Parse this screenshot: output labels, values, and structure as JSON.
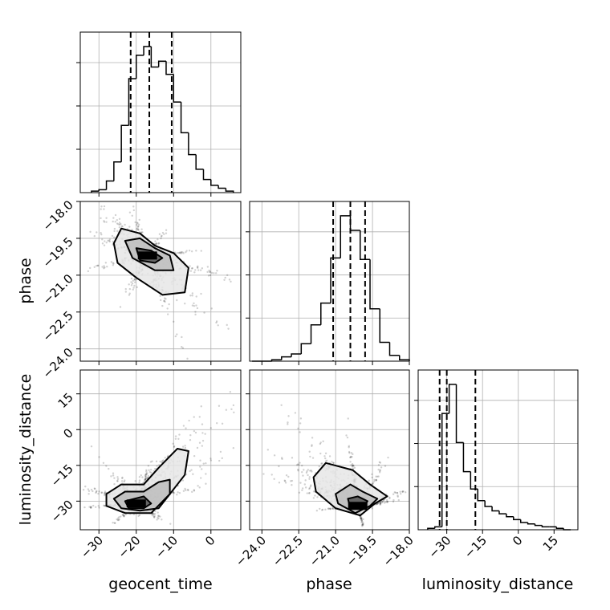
{
  "chart_data": {
    "type": "corner",
    "parameters": [
      "geocent_time",
      "phase",
      "luminosity_distance"
    ],
    "axes": {
      "geocent_time": {
        "range": [
          -35,
          8
        ],
        "ticks": [
          -30,
          -20,
          -10,
          0
        ],
        "tick_labels": [
          "−30",
          "−20",
          "−10",
          "0"
        ]
      },
      "phase": {
        "range": [
          -24.5,
          -18
        ],
        "ticks": [
          -24.0,
          -22.5,
          -21.0,
          -19.5,
          -18.0
        ],
        "tick_labels": [
          "−24.0",
          "−22.5",
          "−21.0",
          "−19.5",
          "−18.0"
        ]
      },
      "luminosity_distance": {
        "range": [
          -42,
          25
        ],
        "ticks": [
          -30,
          -15,
          0,
          15
        ],
        "tick_labels": [
          "−30",
          "−15",
          "0",
          "15"
        ]
      }
    },
    "grid": true,
    "histograms": [
      {
        "parameter": "geocent_time",
        "bin_edges": [
          -32,
          -30,
          -28,
          -26,
          -24,
          -22,
          -20,
          -18,
          -16,
          -14,
          -12,
          -10,
          -8,
          -6,
          -4,
          -2,
          0,
          2,
          4,
          6
        ],
        "counts": [
          0.01,
          0.02,
          0.08,
          0.21,
          0.46,
          0.78,
          0.94,
          1.0,
          0.86,
          0.9,
          0.81,
          0.62,
          0.41,
          0.26,
          0.16,
          0.09,
          0.05,
          0.03,
          0.01
        ],
        "quantiles": [
          -21.5,
          -16.5,
          -10.5
        ]
      },
      {
        "parameter": "phase",
        "bin_edges": [
          -24.4,
          -24.0,
          -23.6,
          -23.2,
          -22.8,
          -22.4,
          -22.0,
          -21.6,
          -21.2,
          -20.8,
          -20.4,
          -20.0,
          -19.6,
          -19.2,
          -18.8,
          -18.4,
          -18.0
        ],
        "counts": [
          0.0,
          0.0,
          0.01,
          0.03,
          0.05,
          0.12,
          0.25,
          0.4,
          0.71,
          1.0,
          0.9,
          0.7,
          0.36,
          0.13,
          0.04,
          0.01
        ],
        "quantiles": [
          -21.1,
          -20.4,
          -19.8
        ]
      },
      {
        "parameter": "luminosity_distance",
        "bin_edges": [
          -38,
          -35,
          -32,
          -29,
          -26,
          -23,
          -20,
          -17,
          -14,
          -11,
          -8,
          -5,
          -2,
          1,
          4,
          7,
          10,
          13,
          16,
          19,
          22
        ],
        "counts": [
          0.01,
          0.02,
          0.8,
          1.0,
          0.6,
          0.4,
          0.28,
          0.2,
          0.16,
          0.13,
          0.11,
          0.09,
          0.07,
          0.05,
          0.04,
          0.03,
          0.02,
          0.02,
          0.01,
          0.0
        ],
        "quantiles": [
          -33,
          -30,
          -18
        ]
      }
    ],
    "joint": [
      {
        "x": "geocent_time",
        "y": "phase",
        "center": [
          -17,
          -20.2
        ],
        "contours": [
          [
            [
              -26,
              -19.7
            ],
            [
              -24,
              -19.1
            ],
            [
              -19,
              -19.3
            ],
            [
              -15,
              -19.8
            ],
            [
              -10,
              -20.1
            ],
            [
              -6,
              -20.7
            ],
            [
              -7,
              -21.7
            ],
            [
              -13,
              -21.8
            ],
            [
              -20,
              -21.1
            ],
            [
              -25,
              -20.5
            ]
          ],
          [
            [
              -23,
              -19.6
            ],
            [
              -19,
              -19.5
            ],
            [
              -15,
              -19.9
            ],
            [
              -11,
              -20.2
            ],
            [
              -10,
              -20.8
            ],
            [
              -15,
              -20.8
            ],
            [
              -21,
              -20.3
            ]
          ],
          [
            [
              -20,
              -19.9
            ],
            [
              -16,
              -20.0
            ],
            [
              -13,
              -20.3
            ],
            [
              -15,
              -20.5
            ],
            [
              -19,
              -20.4
            ]
          ]
        ]
      },
      {
        "x": "geocent_time",
        "y": "luminosity_distance",
        "center": [
          -20,
          -31
        ],
        "contours": [
          [
            [
              -28,
              -27
            ],
            [
              -24,
              -23
            ],
            [
              -18,
              -23
            ],
            [
              -14,
              -16
            ],
            [
              -9,
              -8
            ],
            [
              -6,
              -9
            ],
            [
              -7,
              -19
            ],
            [
              -11,
              -27
            ],
            [
              -16,
              -35
            ],
            [
              -23,
              -35
            ],
            [
              -28,
              -32
            ]
          ],
          [
            [
              -26,
              -29
            ],
            [
              -23,
              -26
            ],
            [
              -18,
              -26
            ],
            [
              -14,
              -22
            ],
            [
              -11,
              -21
            ],
            [
              -11,
              -27
            ],
            [
              -14,
              -33
            ],
            [
              -19,
              -34
            ],
            [
              -24,
              -33
            ]
          ],
          [
            [
              -23,
              -30
            ],
            [
              -18,
              -28
            ],
            [
              -16,
              -31
            ],
            [
              -18,
              -33
            ],
            [
              -22,
              -33
            ]
          ]
        ]
      },
      {
        "x": "phase",
        "y": "luminosity_distance",
        "center": [
          -20.1,
          -32
        ],
        "contours": [
          [
            [
              -21.9,
              -20
            ],
            [
              -21.4,
              -14
            ],
            [
              -20.3,
              -17
            ],
            [
              -19.6,
              -23
            ],
            [
              -18.9,
              -28
            ],
            [
              -19.4,
              -31
            ],
            [
              -20.0,
              -36
            ],
            [
              -21.0,
              -33
            ],
            [
              -21.8,
              -26
            ]
          ],
          [
            [
              -21.0,
              -27
            ],
            [
              -20.4,
              -23
            ],
            [
              -19.9,
              -26
            ],
            [
              -19.3,
              -29
            ],
            [
              -19.6,
              -32
            ],
            [
              -20.2,
              -35
            ],
            [
              -20.9,
              -31
            ]
          ],
          [
            [
              -20.5,
              -29
            ],
            [
              -20.1,
              -28
            ],
            [
              -19.7,
              -30
            ],
            [
              -19.9,
              -33
            ],
            [
              -20.4,
              -33
            ]
          ]
        ]
      }
    ]
  }
}
